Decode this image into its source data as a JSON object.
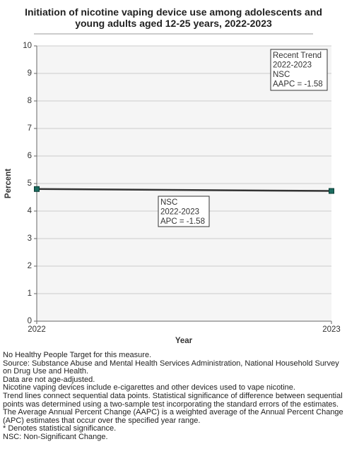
{
  "chart_data": {
    "type": "line",
    "title": "Initiation of nicotine vaping device use among adolescents and young adults aged 12-25 years, 2022-2023",
    "x_label": "Year",
    "y_label": "Percent",
    "categories": [
      "2022",
      "2023"
    ],
    "series": [
      {
        "name": "NSC",
        "color": "#1b6b5f",
        "line_color": "#333333",
        "values": [
          4.8,
          4.73
        ]
      }
    ],
    "ylim": [
      0,
      10
    ],
    "yticks": [
      0,
      1,
      2,
      3,
      4,
      5,
      6,
      7,
      8,
      9,
      10
    ],
    "grid": true,
    "annotations": [
      {
        "lines": [
          "Recent Trend",
          "2022-2023",
          "NSC",
          "AAPC = -1.58"
        ]
      },
      {
        "lines": [
          "NSC",
          "2022-2023",
          "APC = -1.58"
        ]
      }
    ]
  },
  "notes": [
    "No Healthy People Target for this measure.",
    "Source: Substance Abuse and Mental Health Services Administration, National Household Survey on Drug Use and Health.",
    "Data are not age-adjusted.",
    "Nicotine vaping devices include e-cigarettes and other devices used to vape nicotine.",
    "Trend lines connect sequential data points. Statistical significance of difference between sequential points was determined using a two-sample test incorporating the standard errors of the estimates.",
    "The Average Annual Percent Change (AAPC) is a weighted average of the Annual Percent Change (APC) estimates that occur over the specified year range.",
    "* Denotes statistical significance.",
    "NSC: Non-Significant Change."
  ]
}
